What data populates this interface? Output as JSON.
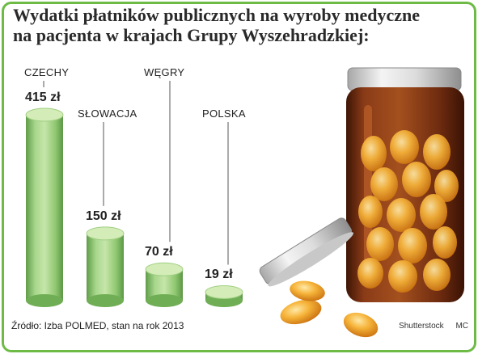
{
  "title": [
    "Wydatki płatników publicznych na wyroby medyczne",
    "na pacjenta w krajach Grupy Wyszehradzkiej:"
  ],
  "source": "Źródło: Izba POLMED, stan na rok 2013",
  "credit": "Shutterstock",
  "author": "MC",
  "colors": {
    "border": "#6dbb45",
    "bar_light": "#d4ecb8",
    "bar_mid": "#8cc870",
    "bar_dark": "#5e9e48",
    "bottle": "#7a2e12",
    "pill": "#f0a524"
  },
  "chart_data": {
    "type": "bar",
    "title": "Wydatki płatników publicznych na wyroby medyczne na pacjenta w krajach Grupy Wyszehradzkiej:",
    "categories": [
      "CZECHY",
      "SŁOWACJA",
      "WĘGRY",
      "POLSKA"
    ],
    "values": [
      415,
      150,
      70,
      19
    ],
    "value_labels": [
      "415 zł",
      "150 zł",
      "70 zł",
      "19 zł"
    ],
    "unit": "zł",
    "xlabel": "",
    "ylabel": "",
    "ylim": [
      0,
      415
    ],
    "grid": false
  }
}
